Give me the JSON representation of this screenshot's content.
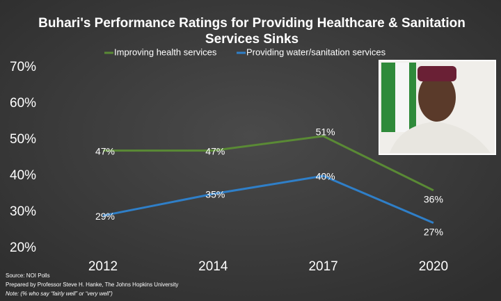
{
  "chart_data": {
    "type": "line",
    "title": [
      "Buhari's Performance Ratings for Providing Healthcare & Sanitation",
      "Services Sinks"
    ],
    "categories": [
      "2012",
      "2014",
      "2017",
      "2020"
    ],
    "series": [
      {
        "name": "Improving health services",
        "color": "#5a8a35",
        "values": [
          47,
          47,
          51,
          36
        ],
        "value_labels": [
          "47%",
          "47%",
          "51%",
          "36%"
        ]
      },
      {
        "name": "Providing water/sanitation services",
        "color": "#2f7fc8",
        "values": [
          29,
          35,
          40,
          27
        ],
        "value_labels": [
          "29%",
          "35%",
          "40%",
          "27%"
        ]
      }
    ],
    "ylim": [
      20,
      70
    ],
    "yticks": [
      {
        "value": 20,
        "label": "20%"
      },
      {
        "value": 30,
        "label": "30%"
      },
      {
        "value": 40,
        "label": "40%"
      },
      {
        "value": 50,
        "label": "50%"
      },
      {
        "value": 60,
        "label": "60%"
      },
      {
        "value": 70,
        "label": "70%"
      }
    ],
    "grid": false,
    "legend": "top",
    "footnotes": [
      "Source: NOI Polls",
      "Prepared by Professor Steve H. Hanke, The Johns Hopkins University",
      "Note: (% who say “fairly well” or “very well”)"
    ]
  }
}
